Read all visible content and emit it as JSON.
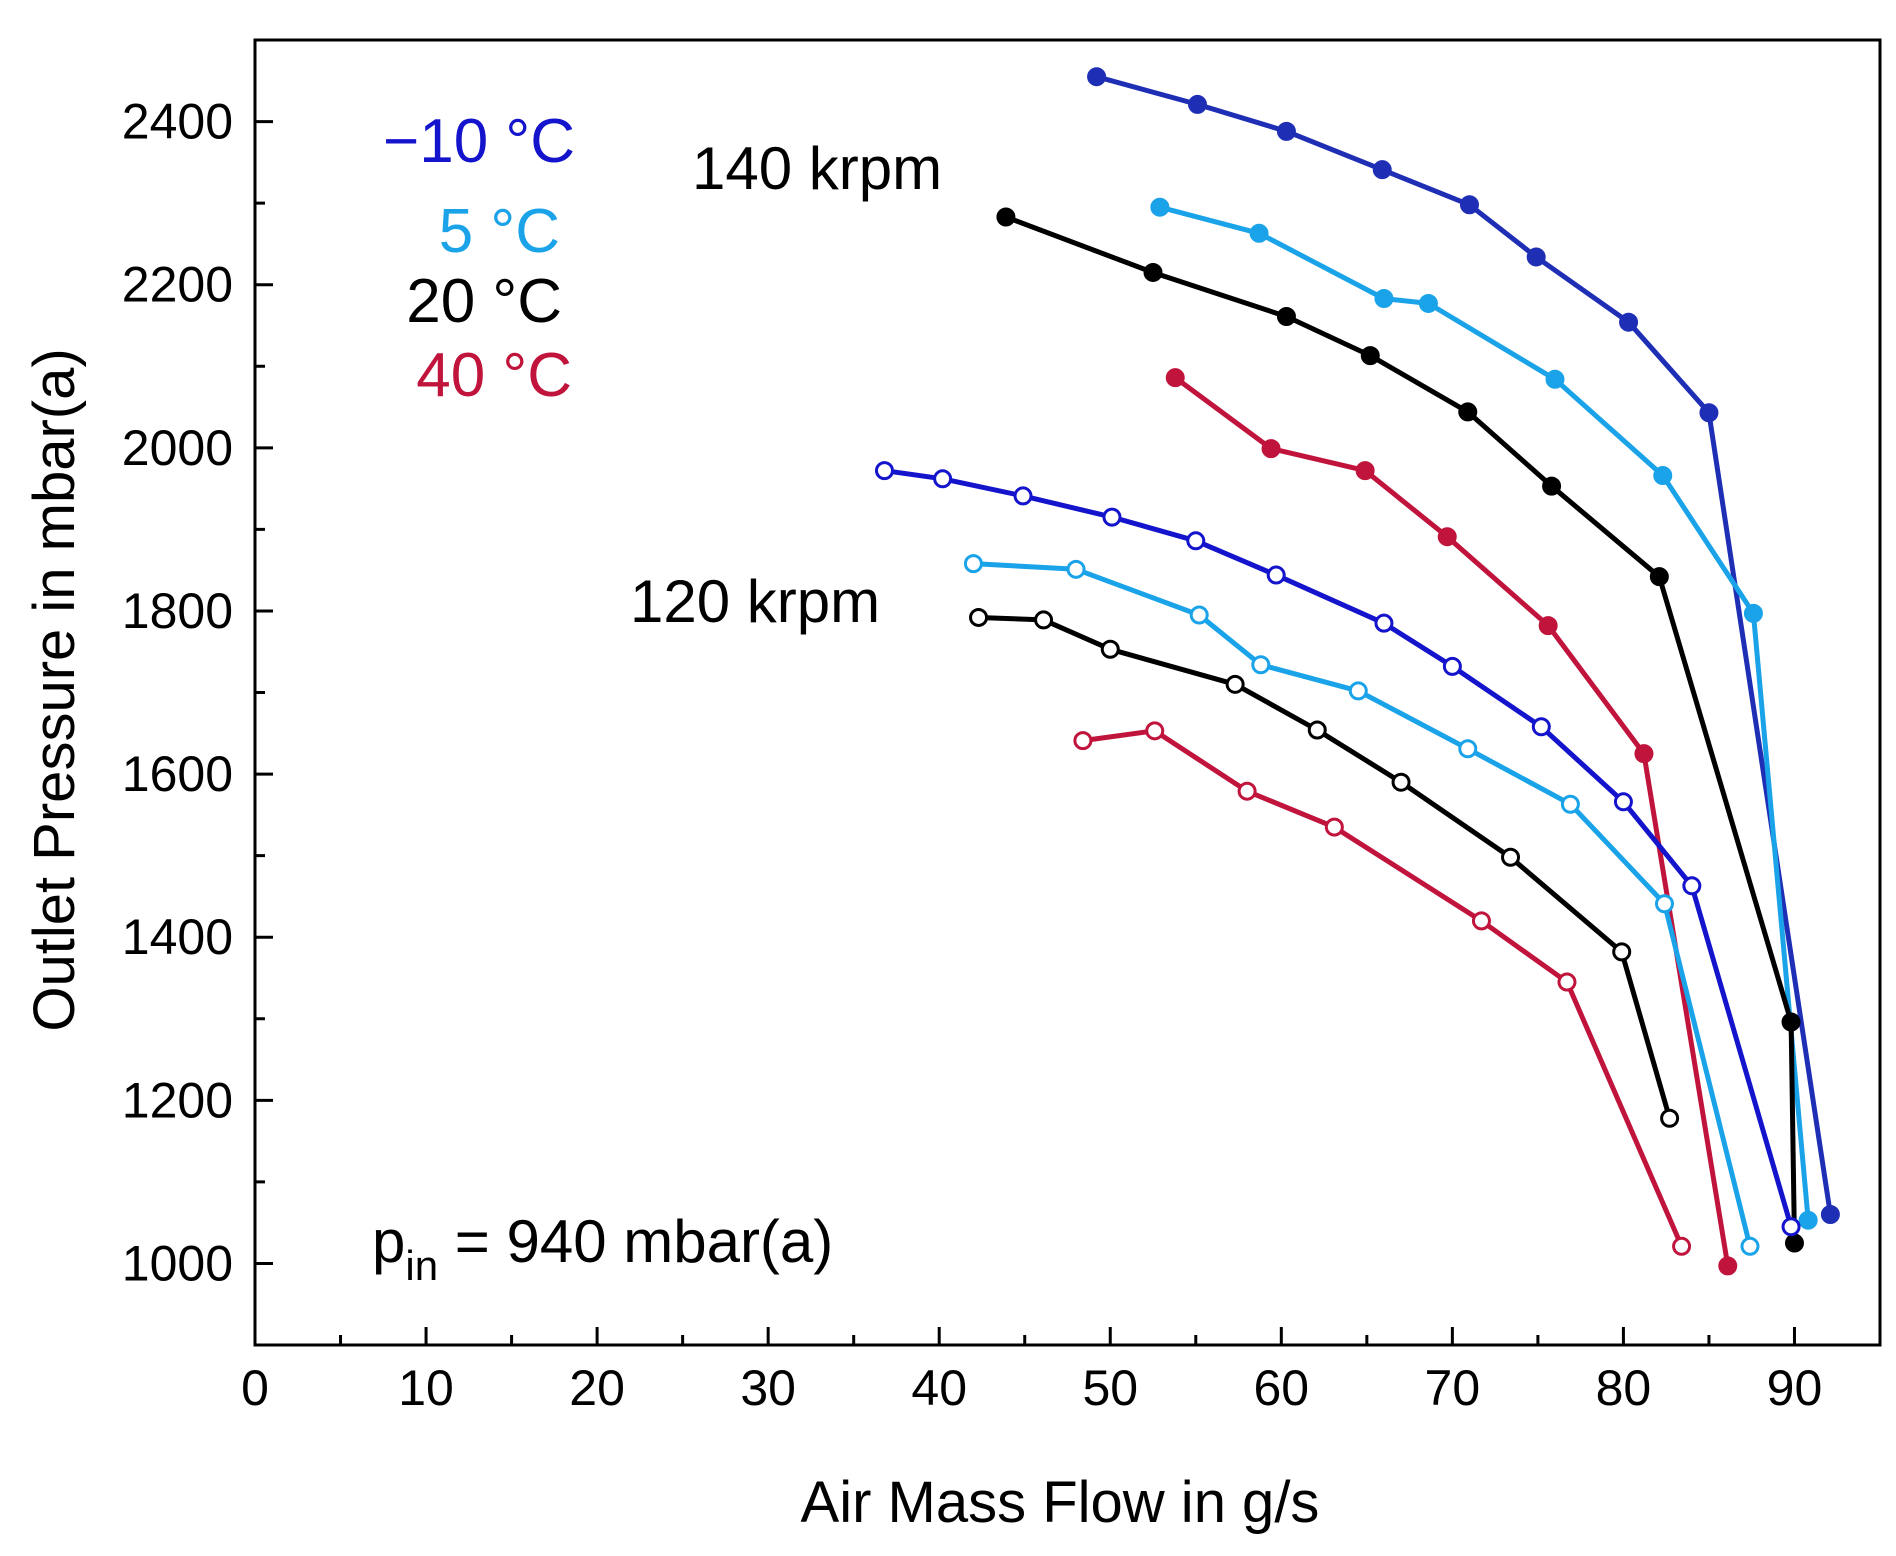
{
  "chart_data": {
    "type": "line",
    "xlabel": "Air Mass Flow in g/s",
    "ylabel": "Outlet Pressure in mbar(a)",
    "xlim": [
      0,
      95
    ],
    "ylim": [
      900,
      2500
    ],
    "xticks": [
      0,
      10,
      20,
      30,
      40,
      50,
      60,
      70,
      80,
      90
    ],
    "yticks": [
      1000,
      1200,
      1400,
      1600,
      1800,
      2000,
      2200,
      2400
    ],
    "annotations": {
      "speed_140": "140 krpm",
      "speed_120": "120 krpm",
      "p_in_main": "p",
      "p_in_sub": "in",
      "p_in_rest": " = 940 mbar(a)"
    },
    "legend": [
      {
        "label": "−10 °C",
        "color": "#1414cc"
      },
      {
        "label": "5 °C",
        "color": "#1aa3e8"
      },
      {
        "label": "20 °C",
        "color": "#000000"
      },
      {
        "label": "40 °C",
        "color": "#c0143c"
      }
    ],
    "series": [
      {
        "name": "−10 °C",
        "speed": "140 krpm",
        "color": "#1f2fb5",
        "marker": "filled",
        "x": [
          49.2,
          55.1,
          60.3,
          65.9,
          71.0,
          74.9,
          80.3,
          85.0,
          92.1
        ],
        "y": [
          2455,
          2421,
          2388,
          2341,
          2298,
          2234,
          2154,
          2043,
          1060
        ]
      },
      {
        "name": "5 °C",
        "speed": "140 krpm",
        "color": "#1aa3e8",
        "marker": "filled",
        "x": [
          52.9,
          58.7,
          66.0,
          68.6,
          76.0,
          82.3,
          87.6,
          90.8
        ],
        "y": [
          2295,
          2263,
          2183,
          2177,
          2084,
          1966,
          1797,
          1053
        ]
      },
      {
        "name": "20 °C",
        "speed": "140 krpm",
        "color": "#000000",
        "marker": "filled",
        "x": [
          43.9,
          52.5,
          60.3,
          65.2,
          70.9,
          75.8,
          82.1,
          89.8,
          90.0
        ],
        "y": [
          2283,
          2215,
          2161,
          2113,
          2044,
          1953,
          1842,
          1296,
          1025
        ]
      },
      {
        "name": "40 °C",
        "speed": "140 krpm",
        "color": "#c0143c",
        "marker": "filled",
        "x": [
          53.8,
          59.4,
          64.9,
          69.7,
          75.6,
          81.2,
          86.1
        ],
        "y": [
          2086,
          1999,
          1972,
          1891,
          1782,
          1625,
          997
        ]
      },
      {
        "name": "−10 °C",
        "speed": "120 krpm",
        "color": "#1414cc",
        "marker": "open",
        "x": [
          36.8,
          40.2,
          44.9,
          50.1,
          55.0,
          59.7,
          66.0,
          70.0,
          75.2,
          80.0,
          84.0,
          89.8
        ],
        "y": [
          1972,
          1962,
          1941,
          1915,
          1886,
          1844,
          1785,
          1732,
          1658,
          1566,
          1463,
          1045
        ]
      },
      {
        "name": "5 °C",
        "speed": "120 krpm",
        "color": "#1aa3e8",
        "marker": "open",
        "x": [
          42.0,
          48.0,
          55.2,
          58.8,
          64.5,
          70.9,
          76.9,
          82.4,
          87.4
        ],
        "y": [
          1858,
          1851,
          1795,
          1734,
          1702,
          1631,
          1563,
          1441,
          1021
        ]
      },
      {
        "name": "20 °C",
        "speed": "120 krpm",
        "color": "#000000",
        "marker": "open",
        "x": [
          42.3,
          46.1,
          50.0,
          57.3,
          62.1,
          67.0,
          73.4,
          79.9,
          82.7
        ],
        "y": [
          1792,
          1789,
          1753,
          1710,
          1654,
          1590,
          1498,
          1382,
          1178
        ]
      },
      {
        "name": "40 °C",
        "speed": "120 krpm",
        "color": "#c0143c",
        "marker": "open",
        "x": [
          48.4,
          52.6,
          58.0,
          63.1,
          71.7,
          76.7,
          83.4
        ],
        "y": [
          1641,
          1653,
          1579,
          1535,
          1420,
          1345,
          1021
        ]
      }
    ]
  }
}
